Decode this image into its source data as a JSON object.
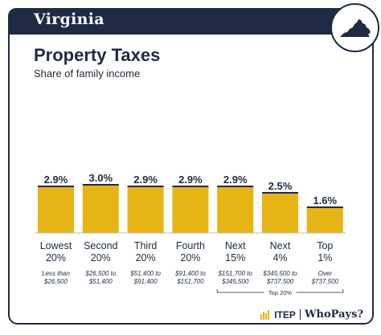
{
  "header": {
    "state": "Virginia",
    "state_icon": "virginia-state-outline-icon",
    "accent_color": "#e7b416",
    "navy_color": "#1f2a44"
  },
  "chart_data": {
    "type": "bar",
    "title": "Property Taxes",
    "subtitle": "Share of family income",
    "categories": [
      "Lowest 20%",
      "Second 20%",
      "Third 20%",
      "Fourth 20%",
      "Next 15%",
      "Next 4%",
      "Top 1%"
    ],
    "group_labels": [
      [
        "Lowest",
        "20%"
      ],
      [
        "Second",
        "20%"
      ],
      [
        "Third",
        "20%"
      ],
      [
        "Fourth",
        "20%"
      ],
      [
        "Next",
        "15%"
      ],
      [
        "Next",
        "4%"
      ],
      [
        "Top",
        "1%"
      ]
    ],
    "income_ranges": [
      [
        "Less than",
        "$26,500"
      ],
      [
        "$26,500 to",
        "$51,400"
      ],
      [
        "$51,400 to",
        "$91,400"
      ],
      [
        "$91,400 to",
        "$151,700"
      ],
      [
        "$151,700 to",
        "$345,500"
      ],
      [
        "$345,500 to",
        "$737,500"
      ],
      [
        "Over",
        "$737,500"
      ]
    ],
    "values": [
      2.9,
      3.0,
      2.9,
      2.9,
      2.9,
      2.5,
      1.6
    ],
    "value_labels": [
      "2.9%",
      "3.0%",
      "2.9%",
      "2.9%",
      "2.9%",
      "2.5%",
      "1.6%"
    ],
    "ylim": [
      0,
      3.5
    ],
    "grid": false,
    "bracket_label": "Top 20%",
    "bar_color": "#e7b416"
  },
  "footer": {
    "brand_a": "ITEP",
    "brand_b": "WhoPays?"
  }
}
